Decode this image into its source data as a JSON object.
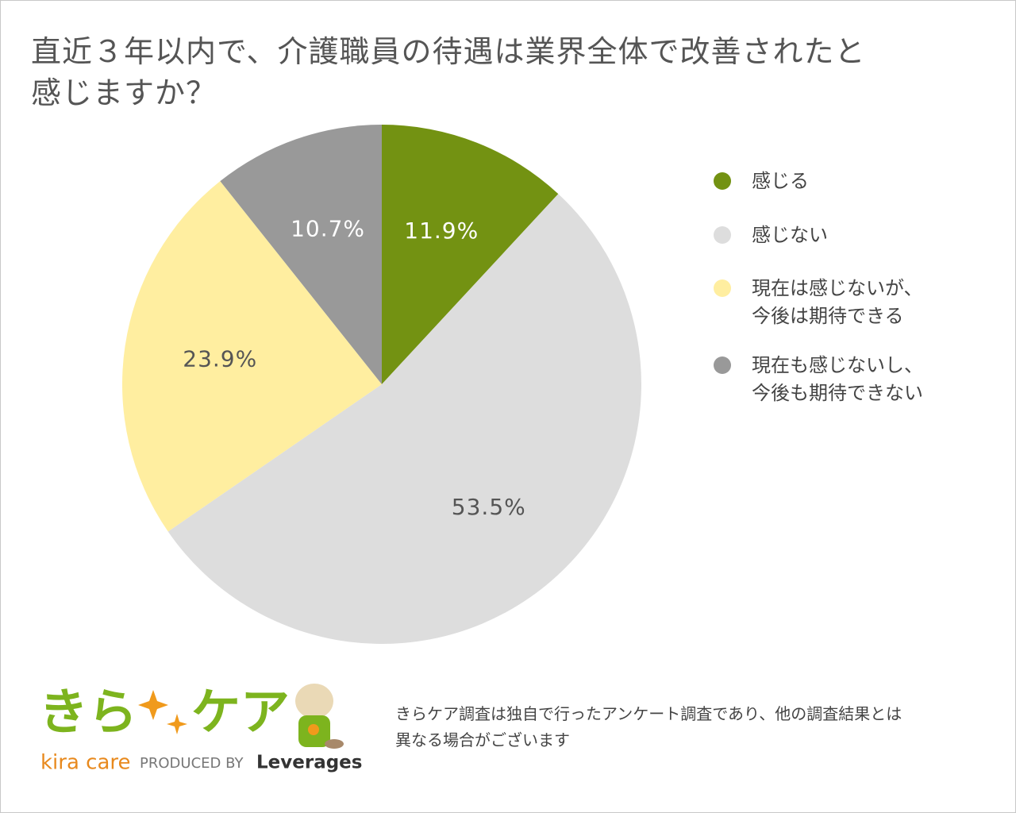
{
  "chart_data": {
    "type": "pie",
    "title": "直近３年以内で、介護職員の待遇は業界全体で改善されたと\n感じますか？",
    "categories": [
      "感じる",
      "感じない",
      "現在は感じないが、\n今後は期待できる",
      "現在も感じないし、\n今後も期待できない"
    ],
    "values": [
      11.9,
      53.5,
      23.9,
      10.7
    ],
    "value_labels": [
      "11.9%",
      "53.5%",
      "23.9%",
      "10.7%"
    ],
    "colors": [
      "#739212",
      "#dddddd",
      "#ffeea0",
      "#999999"
    ],
    "label_colors": [
      "#ffffff",
      "#555555",
      "#555555",
      "#ffffff"
    ],
    "legend": "right"
  },
  "footer": {
    "logo_left": "きら",
    "logo_right": "ケア",
    "brand": "kira care",
    "produced_by": "PRODUCED BY",
    "company": "Leverages",
    "note": "きらケア調査は独自で行ったアンケート調査であり、他の調査結果とは\n異なる場合がございます"
  }
}
